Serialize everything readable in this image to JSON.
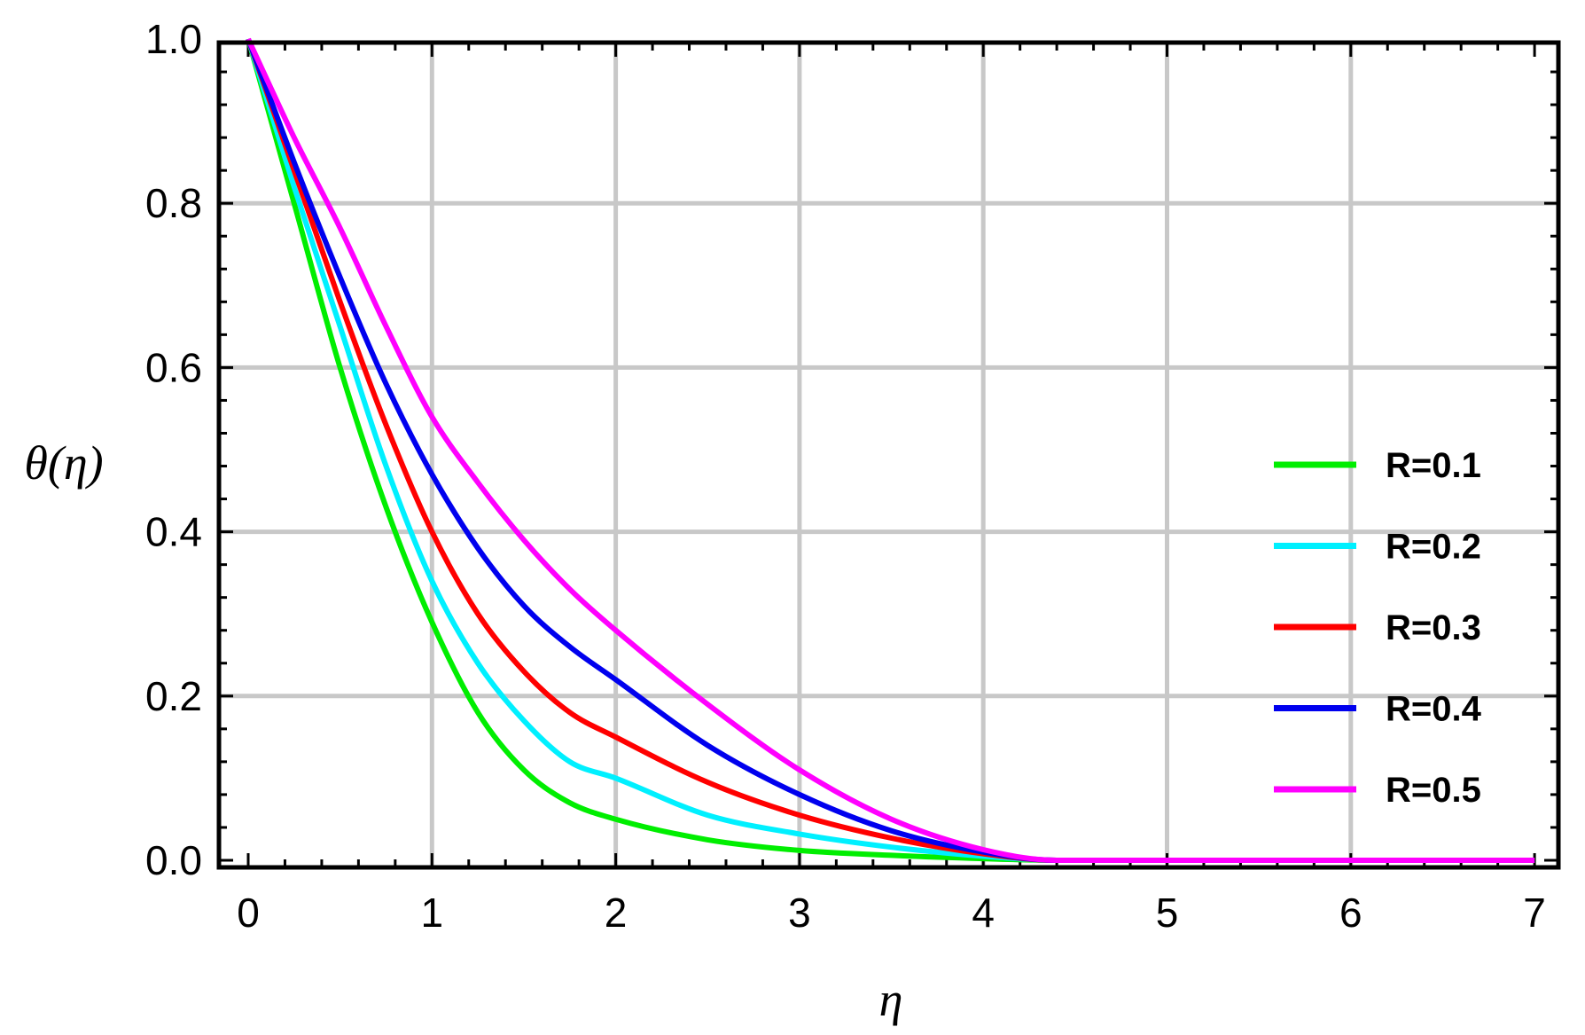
{
  "chart_data": {
    "type": "line",
    "xlabel": "η",
    "ylabel": "θ(η)",
    "xlim": [
      0,
      7
    ],
    "ylim": [
      0,
      1
    ],
    "x_ticks": [
      "0",
      "1",
      "2",
      "3",
      "4",
      "5",
      "6",
      "7"
    ],
    "y_ticks": [
      "0.0",
      "0.2",
      "0.4",
      "0.6",
      "0.8",
      "1.0"
    ],
    "grid": true,
    "legend_position": "right",
    "x": [
      0,
      0.25,
      0.5,
      0.75,
      1.0,
      1.25,
      1.5,
      1.75,
      2.0,
      2.5,
      3.0,
      3.5,
      4.0,
      4.4,
      5.0,
      6.0,
      7.0
    ],
    "series": [
      {
        "name": "R=0.1",
        "color": "#00ee00",
        "values": [
          1.0,
          0.8,
          0.6,
          0.43,
          0.29,
          0.18,
          0.11,
          0.07,
          0.05,
          0.025,
          0.012,
          0.006,
          0.002,
          0.0,
          0.0,
          0.0,
          0.0
        ]
      },
      {
        "name": "R=0.2",
        "color": "#00f0ff",
        "values": [
          1.0,
          0.82,
          0.65,
          0.48,
          0.34,
          0.24,
          0.17,
          0.12,
          0.1,
          0.055,
          0.032,
          0.016,
          0.005,
          0.0,
          0.0,
          0.0,
          0.0
        ]
      },
      {
        "name": "R=0.3",
        "color": "#ff0000",
        "values": [
          1.0,
          0.84,
          0.68,
          0.53,
          0.4,
          0.3,
          0.23,
          0.18,
          0.15,
          0.095,
          0.055,
          0.027,
          0.008,
          0.0,
          0.0,
          0.0,
          0.0
        ]
      },
      {
        "name": "R=0.4",
        "color": "#0000ee",
        "values": [
          1.0,
          0.85,
          0.71,
          0.58,
          0.47,
          0.38,
          0.31,
          0.26,
          0.22,
          0.14,
          0.08,
          0.036,
          0.01,
          0.0,
          0.0,
          0.0,
          0.0
        ]
      },
      {
        "name": "R=0.5",
        "color": "#ff00ff",
        "values": [
          1.0,
          0.88,
          0.77,
          0.65,
          0.54,
          0.46,
          0.39,
          0.33,
          0.28,
          0.19,
          0.11,
          0.05,
          0.013,
          0.0,
          0.0,
          0.0,
          0.0
        ]
      }
    ]
  }
}
